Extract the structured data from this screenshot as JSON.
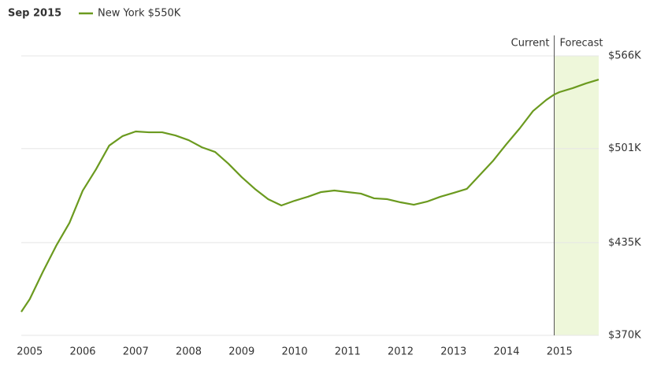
{
  "chart_data": {
    "type": "line",
    "title": "Sep 2015",
    "series": [
      {
        "name": "New York $550K",
        "color": "#6b9a1f",
        "values": [
          386500,
          395400,
          414700,
          432900,
          448900,
          471500,
          486400,
          503100,
          509700,
          513000,
          512400,
          512400,
          510200,
          506900,
          501900,
          498600,
          490400,
          481000,
          472700,
          465500,
          461100,
          464400,
          467200,
          470500,
          471600,
          470500,
          469400,
          466100,
          465500,
          463300,
          461600,
          463800,
          467200,
          469900,
          472700,
          482600,
          492600,
          504200,
          515200,
          527300,
          535100,
          538900,
          540600,
          543400,
          546700,
          549400
        ]
      }
    ],
    "x": [
      2004.84,
      2005.0,
      2005.25,
      2005.5,
      2005.75,
      2006.0,
      2006.25,
      2006.5,
      2006.75,
      2007.0,
      2007.25,
      2007.5,
      2007.75,
      2008.0,
      2008.25,
      2008.5,
      2008.75,
      2009.0,
      2009.25,
      2009.5,
      2009.75,
      2010.0,
      2010.25,
      2010.5,
      2010.75,
      2011.0,
      2011.25,
      2011.5,
      2011.75,
      2012.0,
      2012.25,
      2012.5,
      2012.75,
      2013.0,
      2013.25,
      2013.5,
      2013.75,
      2014.0,
      2014.25,
      2014.5,
      2014.75,
      2014.9,
      2015.0,
      2015.25,
      2015.5,
      2015.74
    ],
    "xlim": [
      2004.84,
      2015.74
    ],
    "xticks": [
      2005,
      2006,
      2007,
      2008,
      2009,
      2010,
      2011,
      2012,
      2013,
      2014,
      2015
    ],
    "ylim": [
      370000,
      566000
    ],
    "yticks": [
      {
        "value": 370000,
        "label": "$370K"
      },
      {
        "value": 435000,
        "label": "$435K"
      },
      {
        "value": 501000,
        "label": "$501K"
      },
      {
        "value": 566000,
        "label": "$566K"
      }
    ],
    "grid": true,
    "annotations": {
      "current": "Current",
      "forecast": "Forecast",
      "forecast_start": 2014.9,
      "forecast_color": "#eef7da"
    }
  }
}
